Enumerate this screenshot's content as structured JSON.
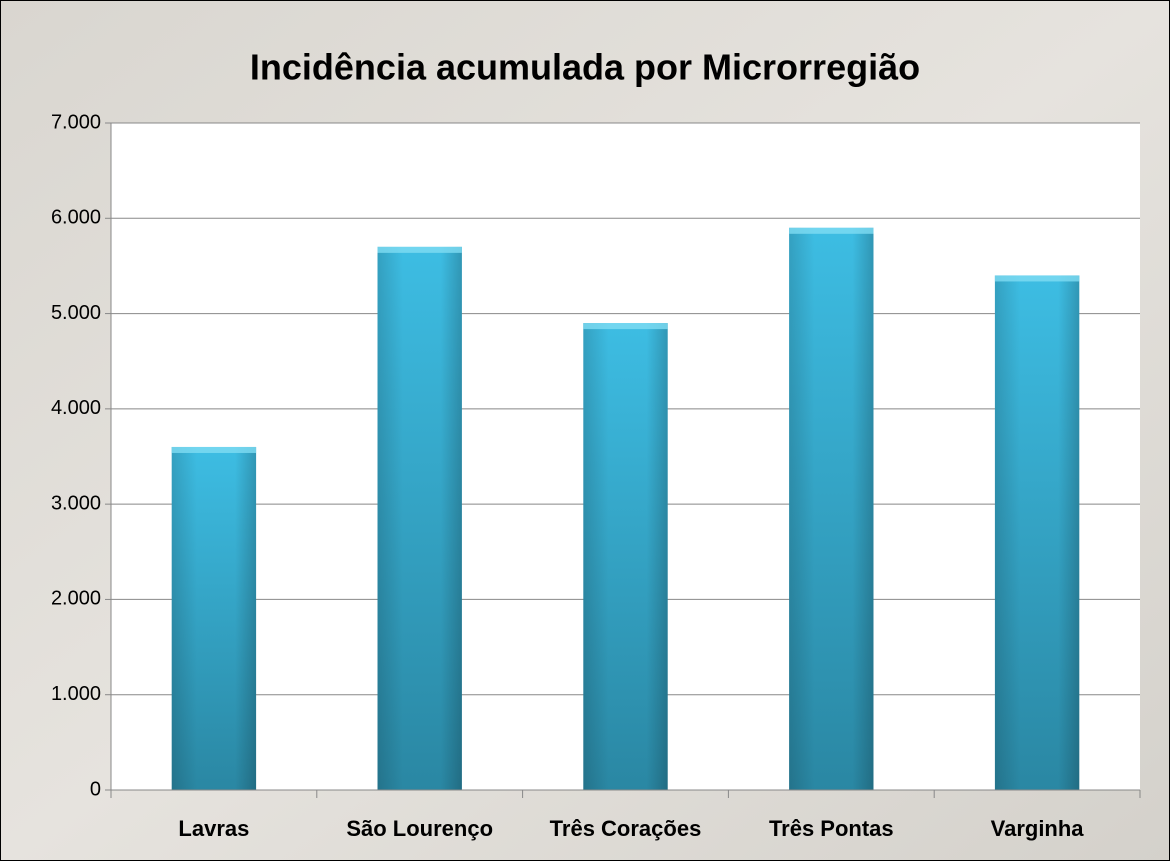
{
  "chart_data": {
    "type": "bar",
    "title": "Incidência acumulada por Microrregião",
    "categories": [
      "Lavras",
      "São Lourenço",
      "Três Corações",
      "Três Pontas",
      "Varginha"
    ],
    "values": [
      3600,
      5700,
      4900,
      5900,
      5400
    ],
    "color": "#31a9cf",
    "ylim": [
      0,
      7000
    ],
    "yticks": [
      0,
      {
        "value": 1000,
        "label": "1.000"
      },
      {
        "value": 2000,
        "label": "2.000"
      },
      {
        "value": 3000,
        "label": "3.000"
      },
      {
        "value": 4000,
        "label": "4.000"
      },
      {
        "value": 5000,
        "label": "5.000"
      },
      {
        "value": 6000,
        "label": "6.000"
      },
      {
        "value": 7000,
        "label": "7.000"
      }
    ],
    "grid": true
  }
}
